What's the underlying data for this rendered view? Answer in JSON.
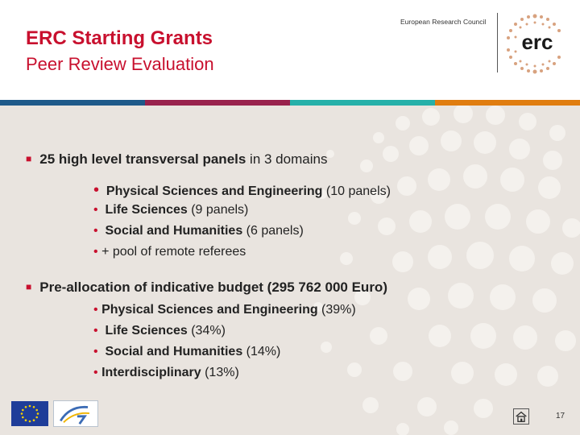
{
  "header": {
    "title": "ERC Starting Grants",
    "subtitle": "Peer Review Evaluation",
    "council": "European Research Council",
    "logo_text": "erc",
    "stripe_colors": [
      "#1f5a8a",
      "#99224d",
      "#26b0a9",
      "#e07d10"
    ]
  },
  "section1": {
    "heading_bold": "25 high level transversal panels",
    "heading_rest": " in 3 domains",
    "items": [
      {
        "bold": "Physical Sciences and Engineering",
        "rest": " (10 panels)"
      },
      {
        "bold": "Life Sciences",
        "rest": " (9 panels)"
      },
      {
        "bold": "Social and Humanities",
        "rest": " (6 panels)"
      },
      {
        "bold": "",
        "rest": "+ pool of remote referees"
      }
    ]
  },
  "section2": {
    "heading": "Pre-allocation of indicative budget (295 762 000 Euro)",
    "items": [
      {
        "bold": "Physical Sciences and Engineering",
        "rest": " (39%)"
      },
      {
        "bold": "Life Sciences",
        "rest": " (34%)"
      },
      {
        "bold": "Social and Humanities",
        "rest": " (14%)"
      },
      {
        "bold": "Interdisciplinary",
        "rest": " (13%)"
      }
    ]
  },
  "footer": {
    "page_number": "17"
  },
  "colors": {
    "accent": "#c8102e",
    "background": "#e9e4df"
  }
}
